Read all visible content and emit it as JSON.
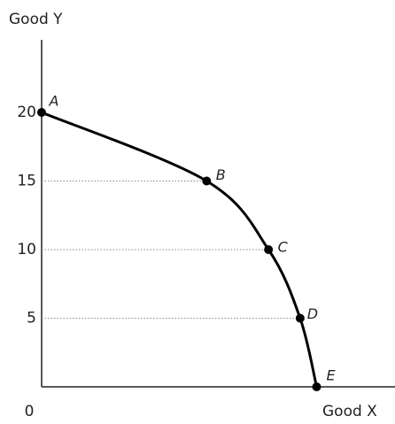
{
  "chart_data": {
    "type": "line",
    "x_label": "Good X",
    "y_label": "Good Y",
    "points": {
      "labels": [
        "A",
        "B",
        "C",
        "D",
        "E"
      ],
      "x": [
        0,
        12,
        16.5,
        18.8,
        20
      ],
      "y": [
        20,
        15,
        10,
        5,
        0
      ],
      "color": "#000000"
    },
    "xlim": [
      0,
      25.7
    ],
    "ylim": [
      0,
      20
    ],
    "yticks": [
      0,
      5,
      10,
      15,
      20
    ],
    "guides": true
  }
}
